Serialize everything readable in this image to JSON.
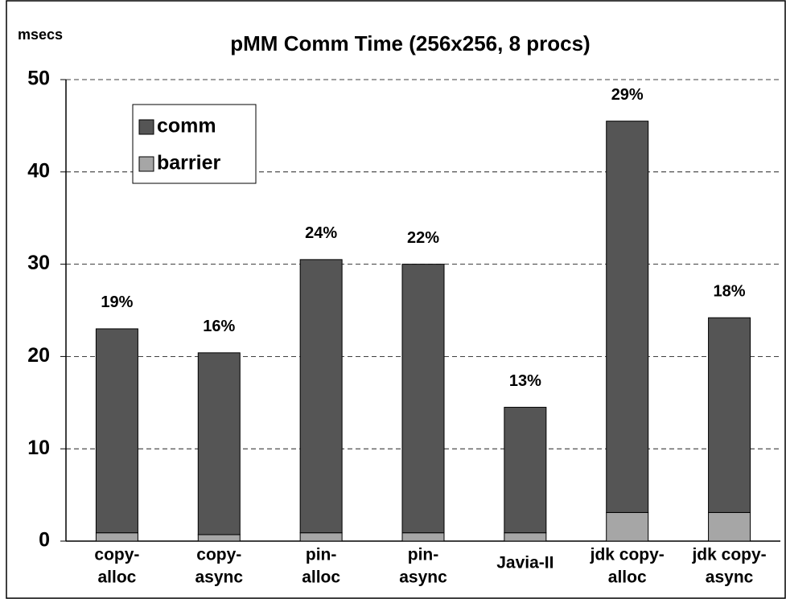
{
  "chart_data": {
    "type": "stacked_bar",
    "title": "pMM Comm Time (256x256, 8 procs)",
    "y_axis_label": "msecs",
    "categories": [
      [
        "copy-",
        "alloc"
      ],
      [
        "copy-",
        "async"
      ],
      [
        "pin-",
        "alloc"
      ],
      [
        "pin-",
        "async"
      ],
      [
        "Javia-II"
      ],
      [
        "jdk copy-",
        "alloc"
      ],
      [
        "jdk copy-",
        "async"
      ]
    ],
    "series": [
      {
        "name": "barrier",
        "color": "#a6a6a6",
        "values": [
          0.9,
          0.7,
          0.9,
          0.9,
          0.9,
          3.1,
          3.1
        ]
      },
      {
        "name": "comm",
        "color": "#555555",
        "values": [
          22.1,
          19.7,
          29.6,
          29.1,
          13.6,
          42.4,
          21.1
        ]
      }
    ],
    "annotations": [
      "19%",
      "16%",
      "24%",
      "22%",
      "13%",
      "29%",
      "18%"
    ],
    "ylim": [
      0,
      50
    ],
    "yticks": [
      0,
      10,
      20,
      30,
      40,
      50
    ],
    "grid": true,
    "legend": "upper left"
  }
}
